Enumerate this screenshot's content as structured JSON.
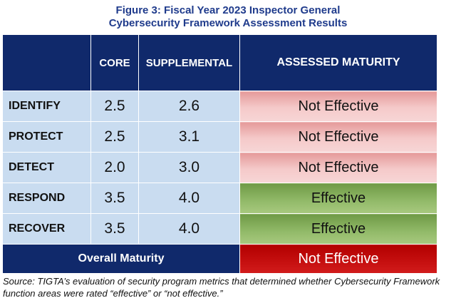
{
  "figure": {
    "title_line1": "Figure 3:  Fiscal Year 2023 Inspector General",
    "title_line2": "Cybersecurity Framework Assessment Results"
  },
  "table": {
    "headers": {
      "core": "CORE",
      "supplemental": "SUPPLEMENTAL",
      "assessed_maturity": "ASSESSED MATURITY"
    },
    "rows": [
      {
        "function": "IDENTIFY",
        "core": "2.5",
        "supplemental": "2.6",
        "maturity": "Not Effective"
      },
      {
        "function": "PROTECT",
        "core": "2.5",
        "supplemental": "3.1",
        "maturity": "Not Effective"
      },
      {
        "function": "DETECT",
        "core": "2.0",
        "supplemental": "3.0",
        "maturity": "Not Effective"
      },
      {
        "function": "RESPOND",
        "core": "3.5",
        "supplemental": "4.0",
        "maturity": "Effective"
      },
      {
        "function": "RECOVER",
        "core": "3.5",
        "supplemental": "4.0",
        "maturity": "Effective"
      }
    ],
    "overall": {
      "label": "Overall Maturity",
      "maturity": "Not Effective"
    }
  },
  "source_note": "Source:  TIGTA’s evaluation of security program metrics that determined whether Cybersecurity Framework function areas were rated “effective” or “not effective.”",
  "colors": {
    "title": "#1f3b8c",
    "header_bg": "#10296b",
    "label_bg": "#c9dcf0",
    "not_effective": "#f2b8b8",
    "effective": "#8db55f",
    "overall_not_effective": "#c00000"
  }
}
